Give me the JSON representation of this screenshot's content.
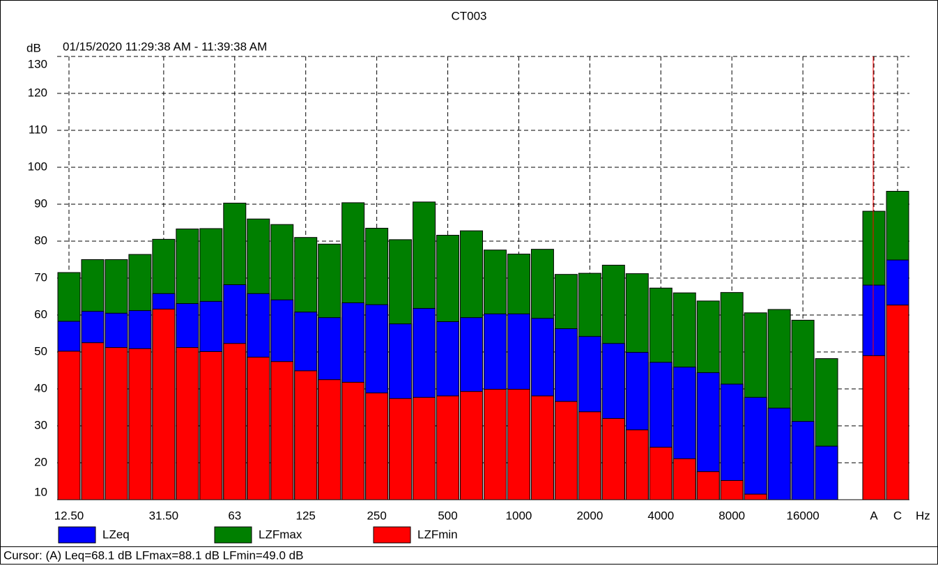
{
  "chart_data": {
    "type": "bar",
    "title": "CT003",
    "subtitle": "01/15/2020 11:29:38 AM - 11:39:38 AM",
    "y_label": "dB",
    "x_label": "Hz",
    "cursor_text": "Cursor: (A)  Leq=68.1 dB  LFmax=88.1 dB  LFmin=49.0 dB",
    "categories": [
      "12.50",
      null,
      null,
      null,
      "31.50",
      null,
      null,
      "63",
      null,
      null,
      "125",
      null,
      null,
      "250",
      null,
      null,
      "500",
      null,
      null,
      "1000",
      null,
      null,
      "2000",
      null,
      null,
      "4000",
      null,
      null,
      "8000",
      null,
      null,
      "16000",
      null,
      null,
      "A",
      "C"
    ],
    "series": [
      {
        "name": "LZFmax",
        "color": "#007f00",
        "values": [
          71.5,
          75,
          75,
          76.4,
          80.5,
          83.3,
          83.4,
          90.3,
          86,
          84.5,
          81,
          79.2,
          90.4,
          83.5,
          80.4,
          90.6,
          81.6,
          82.8,
          77.6,
          76.5,
          77.8,
          71,
          71.3,
          73.5,
          71.2,
          67.3,
          66,
          63.8,
          66.1,
          60.6,
          61.5,
          58.6,
          48.2,
          null,
          88.1,
          93.5
        ]
      },
      {
        "name": "LZeq",
        "color": "#0000ff",
        "values": [
          58.3,
          61,
          60.5,
          61.2,
          65.8,
          63.1,
          63.7,
          68.2,
          65.8,
          64.1,
          60.8,
          59.3,
          63.3,
          62.8,
          57.6,
          61.8,
          58.2,
          59.3,
          60.3,
          60.3,
          59.1,
          56.3,
          54.2,
          52.3,
          49.9,
          47.2,
          45.9,
          44.4,
          41.3,
          37.7,
          34.8,
          31.2,
          24.5,
          null,
          68.1,
          74.9
        ]
      },
      {
        "name": "LZFmin",
        "color": "#ff0000",
        "values": [
          50.2,
          52.5,
          51.2,
          50.9,
          61.6,
          51.2,
          50.1,
          52.3,
          48.6,
          47.4,
          44.9,
          42.5,
          41.8,
          38.9,
          37.4,
          37.7,
          38.1,
          39.3,
          39.9,
          39.9,
          38.1,
          36.6,
          33.8,
          32,
          28.9,
          24.2,
          21.1,
          17.6,
          15.2,
          11.5,
          null,
          null,
          null,
          null,
          49.0,
          62.7
        ]
      }
    ],
    "ylim": [
      10,
      130
    ],
    "yticks": [
      10,
      20,
      30,
      40,
      50,
      60,
      70,
      80,
      90,
      100,
      110,
      120,
      130
    ],
    "grid": true
  }
}
